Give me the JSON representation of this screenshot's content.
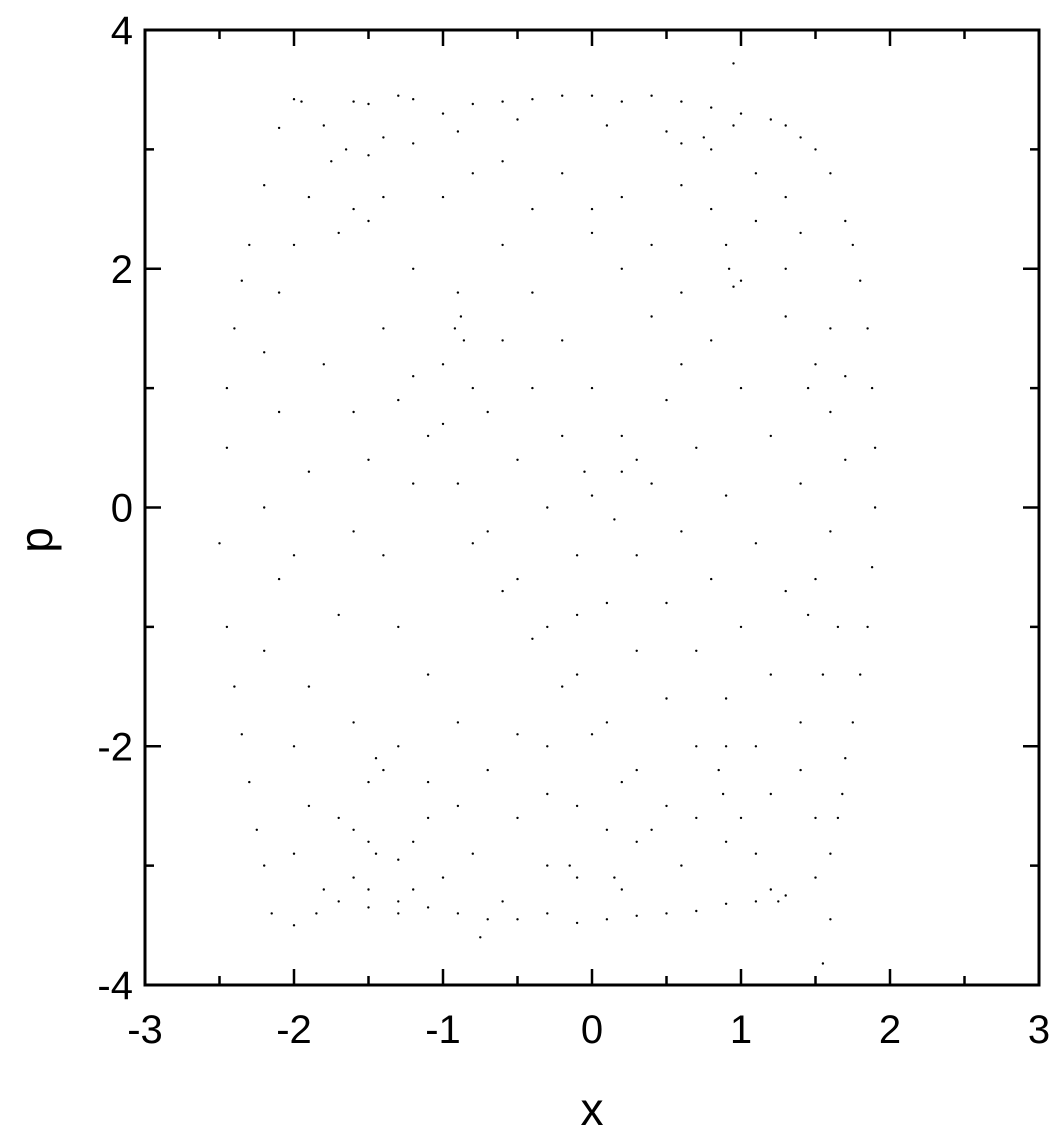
{
  "chart_data": {
    "type": "scatter",
    "title": "",
    "xlabel": "x",
    "ylabel": "p",
    "xlim": [
      -3,
      3
    ],
    "ylim": [
      -4,
      4
    ],
    "x_ticks": [
      -3,
      -2,
      -1,
      0,
      1,
      2,
      3
    ],
    "y_ticks": [
      -4,
      -2,
      0,
      2,
      4
    ],
    "x_tick_labels": [
      "-3",
      "-2",
      "-1",
      "0",
      "1",
      "2",
      "3"
    ],
    "y_tick_labels": [
      "-4",
      "-2",
      "0",
      "2",
      "4"
    ],
    "grid": false,
    "legend": "none",
    "marker_color": "#000000",
    "series": [
      {
        "points": [
          [
            -2.0,
            3.42
          ],
          [
            -1.95,
            3.4
          ],
          [
            -2.1,
            3.18
          ],
          [
            -1.8,
            3.2
          ],
          [
            -1.6,
            3.4
          ],
          [
            -1.5,
            3.38
          ],
          [
            -1.3,
            3.45
          ],
          [
            -1.2,
            3.42
          ],
          [
            -1.0,
            3.3
          ],
          [
            -0.8,
            3.38
          ],
          [
            -0.6,
            3.4
          ],
          [
            -0.4,
            3.42
          ],
          [
            -0.2,
            3.45
          ],
          [
            0.0,
            3.45
          ],
          [
            0.2,
            3.4
          ],
          [
            0.4,
            3.45
          ],
          [
            0.6,
            3.4
          ],
          [
            0.8,
            3.35
          ],
          [
            1.0,
            3.3
          ],
          [
            1.2,
            3.25
          ],
          [
            1.3,
            3.2
          ],
          [
            1.4,
            3.1
          ],
          [
            0.95,
            3.72
          ],
          [
            -1.4,
            3.1
          ],
          [
            -1.2,
            3.05
          ],
          [
            -0.9,
            3.15
          ],
          [
            -0.5,
            3.25
          ],
          [
            0.1,
            3.2
          ],
          [
            0.5,
            3.15
          ],
          [
            0.75,
            3.1
          ],
          [
            -2.2,
            2.7
          ],
          [
            -2.3,
            2.2
          ],
          [
            -2.35,
            1.9
          ],
          [
            -2.4,
            1.5
          ],
          [
            -2.45,
            1.0
          ],
          [
            -2.45,
            0.5
          ],
          [
            -2.5,
            -0.3
          ],
          [
            -2.45,
            -1.0
          ],
          [
            -2.4,
            -1.5
          ],
          [
            -2.35,
            -1.9
          ],
          [
            -2.3,
            -2.3
          ],
          [
            -2.25,
            -2.7
          ],
          [
            -2.2,
            -3.0
          ],
          [
            -2.15,
            -3.4
          ],
          [
            -2.0,
            -3.5
          ],
          [
            -1.85,
            -3.4
          ],
          [
            -1.7,
            -3.3
          ],
          [
            -1.5,
            -3.35
          ],
          [
            -1.3,
            -3.3
          ],
          [
            -1.1,
            -3.35
          ],
          [
            -0.9,
            -3.4
          ],
          [
            -0.7,
            -3.45
          ],
          [
            -0.5,
            -3.45
          ],
          [
            -0.3,
            -3.4
          ],
          [
            -0.1,
            -3.48
          ],
          [
            0.1,
            -3.45
          ],
          [
            0.3,
            -3.42
          ],
          [
            0.5,
            -3.4
          ],
          [
            0.7,
            -3.38
          ],
          [
            0.9,
            -3.32
          ],
          [
            1.1,
            -3.3
          ],
          [
            1.3,
            -3.25
          ],
          [
            1.5,
            -3.1
          ],
          [
            1.6,
            -2.9
          ],
          [
            1.65,
            -2.6
          ],
          [
            1.6,
            -3.45
          ],
          [
            1.55,
            -3.82
          ],
          [
            -0.75,
            -3.6
          ],
          [
            1.7,
            2.4
          ],
          [
            1.75,
            2.2
          ],
          [
            1.8,
            1.9
          ],
          [
            1.85,
            1.5
          ],
          [
            1.88,
            1.0
          ],
          [
            1.9,
            0.5
          ],
          [
            1.9,
            0.0
          ],
          [
            1.88,
            -0.5
          ],
          [
            1.85,
            -1.0
          ],
          [
            1.8,
            -1.4
          ],
          [
            1.75,
            -1.8
          ],
          [
            1.7,
            -2.1
          ],
          [
            1.68,
            -2.4
          ],
          [
            1.6,
            2.8
          ],
          [
            1.5,
            3.0
          ],
          [
            -0.9,
            1.8
          ],
          [
            -0.88,
            1.6
          ],
          [
            -0.86,
            1.4
          ],
          [
            -0.92,
            1.5
          ],
          [
            0.9,
            2.2
          ],
          [
            0.92,
            2.0
          ],
          [
            0.95,
            1.85
          ],
          [
            1.0,
            1.9
          ],
          [
            -1.7,
            -2.6
          ],
          [
            -1.6,
            -2.7
          ],
          [
            -1.5,
            -2.8
          ],
          [
            -1.45,
            -2.9
          ],
          [
            -1.3,
            -2.95
          ],
          [
            -1.2,
            -2.8
          ],
          [
            -1.1,
            -2.6
          ],
          [
            0.85,
            -2.2
          ],
          [
            0.9,
            -2.0
          ],
          [
            0.88,
            -2.4
          ],
          [
            -1.5,
            -2.3
          ],
          [
            -1.4,
            -2.2
          ],
          [
            -1.45,
            -2.1
          ],
          [
            -1.6,
            2.5
          ],
          [
            -1.5,
            2.4
          ],
          [
            -1.7,
            2.3
          ],
          [
            -1.4,
            2.6
          ],
          [
            0.2,
            -3.2
          ],
          [
            0.15,
            -3.1
          ],
          [
            -0.1,
            -3.1
          ],
          [
            -0.15,
            -3.0
          ],
          [
            1.2,
            -3.2
          ],
          [
            1.25,
            -3.3
          ],
          [
            -1.8,
            1.2
          ],
          [
            -1.6,
            0.8
          ],
          [
            -1.9,
            0.3
          ],
          [
            -2.0,
            -0.4
          ],
          [
            -1.7,
            -0.9
          ],
          [
            -1.9,
            -1.5
          ],
          [
            -1.6,
            -1.8
          ],
          [
            -1.2,
            2.0
          ],
          [
            -1.0,
            1.2
          ],
          [
            -0.7,
            0.8
          ],
          [
            -0.5,
            0.4
          ],
          [
            -0.3,
            0.0
          ],
          [
            -0.1,
            -0.4
          ],
          [
            0.1,
            -0.8
          ],
          [
            0.3,
            -1.2
          ],
          [
            0.5,
            -1.6
          ],
          [
            0.7,
            -2.0
          ],
          [
            -1.1,
            0.6
          ],
          [
            -0.9,
            0.2
          ],
          [
            -0.7,
            -0.2
          ],
          [
            -0.5,
            -0.6
          ],
          [
            -0.3,
            -1.0
          ],
          [
            -0.1,
            -1.4
          ],
          [
            0.1,
            -1.8
          ],
          [
            0.3,
            -2.2
          ],
          [
            -0.6,
            2.2
          ],
          [
            -0.4,
            1.8
          ],
          [
            -0.2,
            1.4
          ],
          [
            0.0,
            1.0
          ],
          [
            0.2,
            0.6
          ],
          [
            0.4,
            0.2
          ],
          [
            0.6,
            -0.2
          ],
          [
            0.8,
            -0.6
          ],
          [
            1.0,
            -1.0
          ],
          [
            1.2,
            -1.4
          ],
          [
            1.4,
            -1.8
          ],
          [
            0.2,
            2.6
          ],
          [
            0.4,
            2.2
          ],
          [
            0.6,
            1.8
          ],
          [
            0.8,
            1.4
          ],
          [
            1.0,
            1.0
          ],
          [
            1.2,
            0.6
          ],
          [
            1.4,
            0.2
          ],
          [
            1.6,
            -0.2
          ],
          [
            1.5,
            -0.6
          ],
          [
            -1.4,
            1.5
          ],
          [
            -1.2,
            1.1
          ],
          [
            -1.0,
            0.7
          ],
          [
            -0.8,
            -0.3
          ],
          [
            -0.6,
            -0.7
          ],
          [
            -0.4,
            -1.1
          ],
          [
            -0.2,
            -1.5
          ],
          [
            0.0,
            -1.9
          ],
          [
            0.2,
            -2.3
          ],
          [
            0.4,
            -2.7
          ],
          [
            0.6,
            -3.0
          ],
          [
            -1.3,
            -1.0
          ],
          [
            -1.1,
            -1.4
          ],
          [
            -0.9,
            -1.8
          ],
          [
            -0.7,
            -2.2
          ],
          [
            -0.5,
            -2.6
          ],
          [
            -0.3,
            -3.0
          ],
          [
            1.3,
            1.6
          ],
          [
            1.5,
            1.2
          ],
          [
            1.6,
            0.8
          ],
          [
            1.7,
            0.4
          ],
          [
            1.1,
            2.4
          ],
          [
            1.3,
            2.0
          ],
          [
            -2.1,
            1.8
          ],
          [
            -2.2,
            1.3
          ],
          [
            -2.1,
            0.8
          ],
          [
            -2.2,
            0.0
          ],
          [
            -2.1,
            -0.6
          ],
          [
            -2.2,
            -1.2
          ],
          [
            -2.0,
            -2.0
          ],
          [
            -1.9,
            -2.5
          ],
          [
            -0.2,
            2.8
          ],
          [
            0.0,
            2.5
          ],
          [
            -0.4,
            2.5
          ],
          [
            0.6,
            2.7
          ],
          [
            0.8,
            2.5
          ],
          [
            1.1,
            2.8
          ],
          [
            1.3,
            2.6
          ],
          [
            1.4,
            2.3
          ],
          [
            -1.0,
            2.6
          ],
          [
            -0.8,
            2.8
          ],
          [
            -0.6,
            2.9
          ],
          [
            0.3,
            0.4
          ],
          [
            0.2,
            0.3
          ],
          [
            0.5,
            0.9
          ],
          [
            -0.3,
            -2.0
          ],
          [
            -0.5,
            -1.9
          ],
          [
            1.0,
            -2.6
          ],
          [
            1.2,
            -2.4
          ],
          [
            1.4,
            -2.2
          ],
          [
            1.5,
            -2.6
          ],
          [
            1.1,
            -2.9
          ],
          [
            0.9,
            -2.8
          ],
          [
            0.7,
            -2.6
          ],
          [
            0.5,
            -2.5
          ],
          [
            0.3,
            -2.8
          ],
          [
            0.1,
            -2.7
          ],
          [
            -0.1,
            -2.5
          ],
          [
            -0.3,
            -2.4
          ],
          [
            -0.8,
            -2.9
          ],
          [
            -1.0,
            -3.1
          ],
          [
            -1.2,
            -3.2
          ],
          [
            -1.6,
            -3.1
          ],
          [
            -1.8,
            -3.2
          ],
          [
            -2.0,
            -2.9
          ],
          [
            -0.9,
            -2.5
          ],
          [
            -1.1,
            -2.3
          ],
          [
            -1.3,
            -2.0
          ],
          [
            -0.8,
            1.0
          ],
          [
            -0.6,
            1.4
          ],
          [
            -1.2,
            0.2
          ],
          [
            -1.4,
            -0.4
          ],
          [
            -1.6,
            -0.2
          ],
          [
            -1.5,
            0.4
          ],
          [
            -1.3,
            0.9
          ],
          [
            0.7,
            0.5
          ],
          [
            0.9,
            0.1
          ],
          [
            1.1,
            -0.3
          ],
          [
            1.3,
            -0.7
          ],
          [
            0.6,
            1.2
          ],
          [
            0.4,
            1.6
          ],
          [
            0.2,
            2.0
          ],
          [
            0.0,
            2.3
          ],
          [
            0.3,
            -0.4
          ],
          [
            0.5,
            -0.8
          ],
          [
            0.7,
            -1.2
          ],
          [
            0.9,
            -1.6
          ],
          [
            1.1,
            -2.0
          ],
          [
            -0.2,
            0.6
          ],
          [
            -0.4,
            1.0
          ],
          [
            -0.1,
            -0.9
          ],
          [
            0.0,
            0.1
          ],
          [
            0.15,
            -0.1
          ],
          [
            -0.05,
            0.3
          ],
          [
            1.45,
            1.0
          ],
          [
            1.6,
            1.5
          ],
          [
            1.7,
            1.1
          ],
          [
            1.65,
            -1.0
          ],
          [
            1.55,
            -1.4
          ],
          [
            1.45,
            -0.9
          ],
          [
            -1.75,
            2.9
          ],
          [
            -1.9,
            2.6
          ],
          [
            -2.0,
            2.2
          ],
          [
            -1.65,
            3.0
          ],
          [
            -1.5,
            2.95
          ],
          [
            0.95,
            3.2
          ],
          [
            0.8,
            3.0
          ],
          [
            0.6,
            3.05
          ],
          [
            -1.3,
            -3.4
          ],
          [
            -1.5,
            -3.2
          ],
          [
            -0.6,
            -3.3
          ]
        ]
      }
    ]
  }
}
